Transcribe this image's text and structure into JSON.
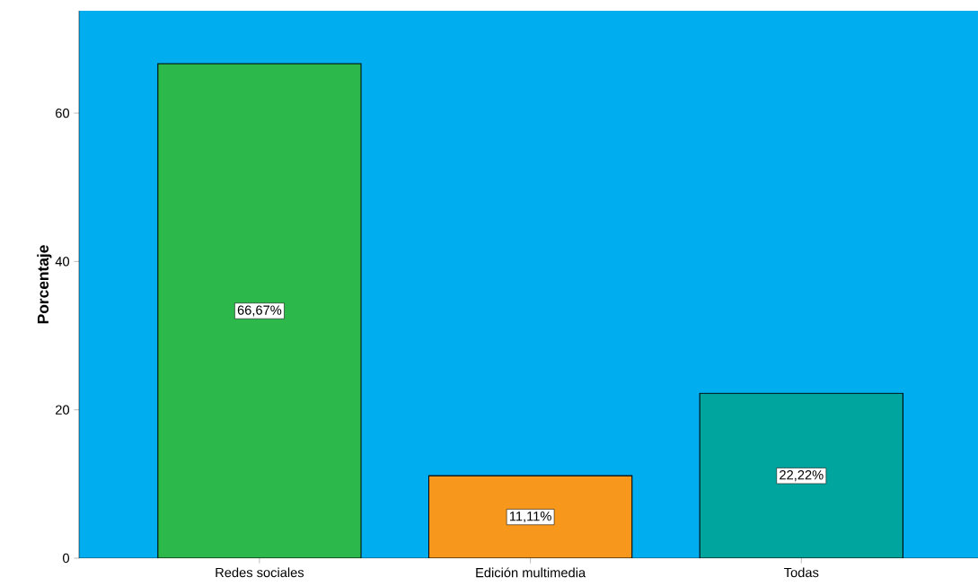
{
  "chart_data": {
    "type": "bar",
    "ylabel": "Porcentaje",
    "categories": [
      "Redes sociales",
      "Edición multimedia",
      "Todas"
    ],
    "values": [
      66.67,
      11.11,
      22.22
    ],
    "colors": [
      "#2db84b",
      "#f7981d",
      "#00a59e"
    ],
    "value_labels": [
      "66,67%",
      "11,11%",
      "22,22%"
    ],
    "ylim": [
      0,
      73.8
    ],
    "yticks": [
      0,
      20,
      40,
      60
    ]
  }
}
